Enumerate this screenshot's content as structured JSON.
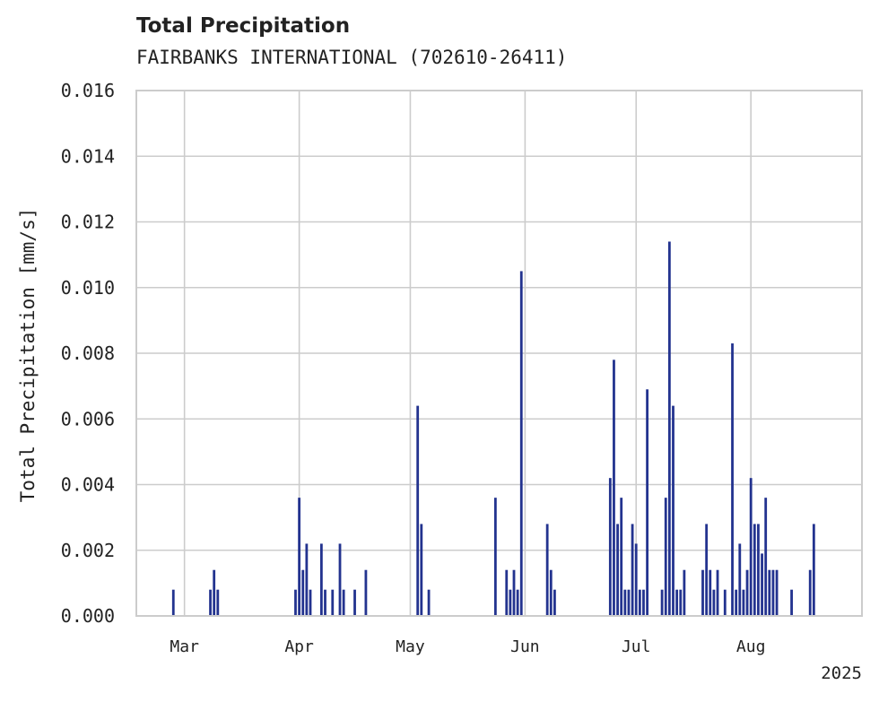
{
  "chart_data": {
    "type": "bar",
    "title": "Total Precipitation",
    "subtitle": "FAIRBANKS INTERNATIONAL (702610-26411)",
    "ylabel": "Total Precipitation [mm/s]",
    "xlabel": "",
    "ylim": [
      0,
      0.016
    ],
    "y_ticks": [
      "0.000",
      "0.002",
      "0.004",
      "0.006",
      "0.008",
      "0.010",
      "0.012",
      "0.014",
      "0.016"
    ],
    "x_range": [
      "2025-02-16",
      "2025-08-31"
    ],
    "x_ticks": [
      {
        "date": "2025-03-01",
        "label": "Mar"
      },
      {
        "date": "2025-04-01",
        "label": "Apr"
      },
      {
        "date": "2025-05-01",
        "label": "May"
      },
      {
        "date": "2025-06-01",
        "label": "Jun"
      },
      {
        "date": "2025-07-01",
        "label": "Jul"
      },
      {
        "date": "2025-08-01",
        "label": "Aug"
      }
    ],
    "x_year_label": "2025",
    "grid": true,
    "color": "#23338f",
    "series": [
      {
        "dates": [
          "2025-02-26",
          "2025-03-08",
          "2025-03-09",
          "2025-03-10",
          "2025-03-31",
          "2025-04-01",
          "2025-04-02",
          "2025-04-03",
          "2025-04-04",
          "2025-04-07",
          "2025-04-08",
          "2025-04-10",
          "2025-04-12",
          "2025-04-13",
          "2025-04-16",
          "2025-04-19",
          "2025-05-03",
          "2025-05-04",
          "2025-05-06",
          "2025-05-24",
          "2025-05-27",
          "2025-05-28",
          "2025-05-29",
          "2025-05-30",
          "2025-05-31",
          "2025-06-07",
          "2025-06-08",
          "2025-06-09",
          "2025-06-24",
          "2025-06-25",
          "2025-06-26",
          "2025-06-27",
          "2025-06-28",
          "2025-06-29",
          "2025-06-30",
          "2025-07-01",
          "2025-07-02",
          "2025-07-03",
          "2025-07-04",
          "2025-07-08",
          "2025-07-09",
          "2025-07-10",
          "2025-07-11",
          "2025-07-12",
          "2025-07-13",
          "2025-07-14",
          "2025-07-19",
          "2025-07-20",
          "2025-07-21",
          "2025-07-22",
          "2025-07-23",
          "2025-07-25",
          "2025-07-27",
          "2025-07-28",
          "2025-07-29",
          "2025-07-30",
          "2025-07-31",
          "2025-08-01",
          "2025-08-02",
          "2025-08-03",
          "2025-08-04",
          "2025-08-05",
          "2025-08-06",
          "2025-08-07",
          "2025-08-08",
          "2025-08-12",
          "2025-08-17",
          "2025-08-18"
        ],
        "values": [
          0.0008,
          0.0008,
          0.0014,
          0.0008,
          0.0008,
          0.0036,
          0.0014,
          0.0022,
          0.0008,
          0.0022,
          0.0008,
          0.0008,
          0.0022,
          0.0008,
          0.0008,
          0.0014,
          0.0064,
          0.0028,
          0.0008,
          0.0036,
          0.0014,
          0.0008,
          0.0014,
          0.0008,
          0.0105,
          0.0028,
          0.0014,
          0.0008,
          0.0042,
          0.0078,
          0.0028,
          0.0036,
          0.0008,
          0.0008,
          0.0028,
          0.0022,
          0.0008,
          0.0008,
          0.0069,
          0.0008,
          0.0036,
          0.0114,
          0.0064,
          0.0008,
          0.0008,
          0.0014,
          0.0014,
          0.0028,
          0.0014,
          0.0008,
          0.0014,
          0.0008,
          0.0083,
          0.0008,
          0.0022,
          0.0008,
          0.0014,
          0.0042,
          0.0028,
          0.0028,
          0.0019,
          0.0036,
          0.0014,
          0.0014,
          0.0014,
          0.0008,
          0.0014,
          0.0028
        ]
      }
    ]
  }
}
